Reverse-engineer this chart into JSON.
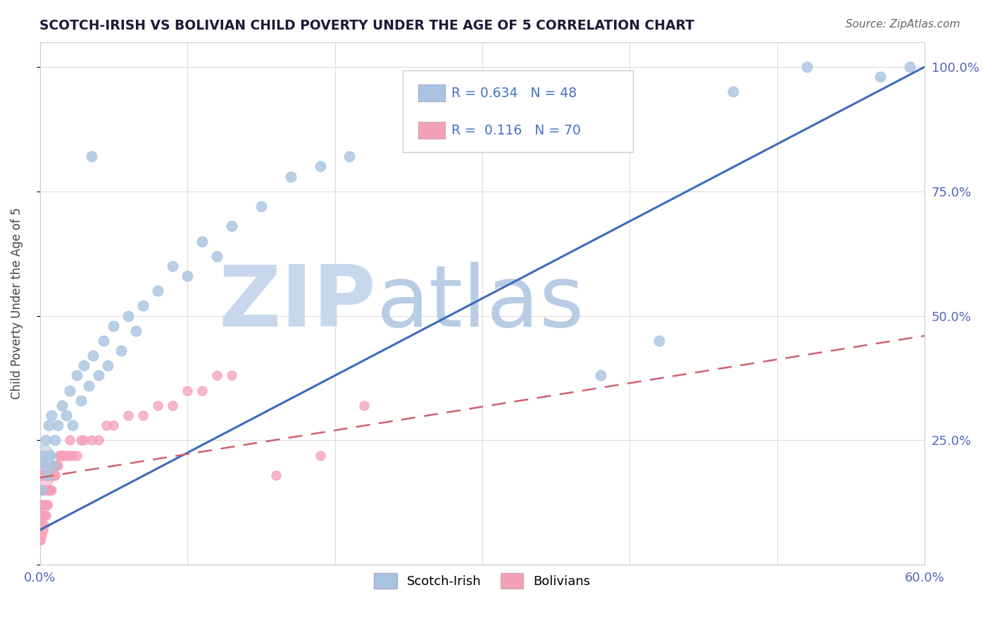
{
  "title": "SCOTCH-IRISH VS BOLIVIAN CHILD POVERTY UNDER THE AGE OF 5 CORRELATION CHART",
  "source": "Source: ZipAtlas.com",
  "ylabel": "Child Poverty Under the Age of 5",
  "xlim": [
    0.0,
    0.6
  ],
  "ylim": [
    0.0,
    1.05
  ],
  "xticks": [
    0.0,
    0.1,
    0.2,
    0.3,
    0.4,
    0.5,
    0.6
  ],
  "xtick_labels": [
    "0.0%",
    "",
    "",
    "",
    "",
    "",
    "60.0%"
  ],
  "ytick_labels": [
    "",
    "25.0%",
    "50.0%",
    "75.0%",
    "100.0%"
  ],
  "yticks": [
    0.0,
    0.25,
    0.5,
    0.75,
    1.0
  ],
  "scotch_irish_R": 0.634,
  "scotch_irish_N": 48,
  "bolivian_R": 0.116,
  "bolivian_N": 70,
  "scotch_irish_color": "#a8c4e0",
  "scotch_irish_line_color": "#3a6bbf",
  "bolivian_color": "#f4a0b8",
  "bolivian_line_color": "#d06070",
  "watermark_zip": "ZIP",
  "watermark_atlas": "atlas",
  "watermark_color_zip": "#c8d8ec",
  "watermark_color_atlas": "#b8cce4",
  "background_color": "#ffffff",
  "si_line_x0": 0.0,
  "si_line_y0": 0.07,
  "si_line_x1": 0.6,
  "si_line_y1": 1.0,
  "bo_line_x0": 0.0,
  "bo_line_y0": 0.175,
  "bo_line_x1": 0.6,
  "bo_line_y1": 0.46,
  "scotch_irish_x": [
    0.002,
    0.003,
    0.004,
    0.005,
    0.006,
    0.007,
    0.008,
    0.009,
    0.01,
    0.012,
    0.015,
    0.018,
    0.02,
    0.022,
    0.025,
    0.028,
    0.03,
    0.033,
    0.036,
    0.04,
    0.043,
    0.046,
    0.05,
    0.055,
    0.06,
    0.065,
    0.07,
    0.08,
    0.09,
    0.1,
    0.11,
    0.12,
    0.13,
    0.15,
    0.17,
    0.19,
    0.21,
    0.25,
    0.28,
    0.32,
    0.38,
    0.42,
    0.47,
    0.52,
    0.57,
    0.59,
    0.001,
    0.035
  ],
  "scotch_irish_y": [
    0.22,
    0.2,
    0.25,
    0.18,
    0.28,
    0.22,
    0.3,
    0.2,
    0.25,
    0.28,
    0.32,
    0.3,
    0.35,
    0.28,
    0.38,
    0.33,
    0.4,
    0.36,
    0.42,
    0.38,
    0.45,
    0.4,
    0.48,
    0.43,
    0.5,
    0.47,
    0.52,
    0.55,
    0.6,
    0.58,
    0.65,
    0.62,
    0.68,
    0.72,
    0.78,
    0.8,
    0.82,
    0.88,
    0.9,
    0.85,
    0.38,
    0.45,
    0.95,
    1.0,
    0.98,
    1.0,
    0.15,
    0.82
  ],
  "bolivian_x": [
    0.0,
    0.0,
    0.0,
    0.0,
    0.0,
    0.001,
    0.001,
    0.001,
    0.001,
    0.001,
    0.002,
    0.002,
    0.002,
    0.002,
    0.003,
    0.003,
    0.003,
    0.003,
    0.004,
    0.004,
    0.004,
    0.005,
    0.005,
    0.005,
    0.006,
    0.006,
    0.007,
    0.007,
    0.008,
    0.008,
    0.009,
    0.01,
    0.01,
    0.011,
    0.012,
    0.013,
    0.014,
    0.015,
    0.016,
    0.018,
    0.02,
    0.022,
    0.025,
    0.028,
    0.03,
    0.035,
    0.04,
    0.045,
    0.05,
    0.06,
    0.07,
    0.08,
    0.09,
    0.1,
    0.11,
    0.12,
    0.13,
    0.0,
    0.001,
    0.002,
    0.003,
    0.004,
    0.005,
    0.007,
    0.01,
    0.015,
    0.02,
    0.16,
    0.19,
    0.22
  ],
  "bolivian_y": [
    0.05,
    0.08,
    0.1,
    0.12,
    0.15,
    0.08,
    0.1,
    0.12,
    0.15,
    0.18,
    0.1,
    0.12,
    0.15,
    0.18,
    0.1,
    0.12,
    0.15,
    0.18,
    0.12,
    0.15,
    0.18,
    0.12,
    0.15,
    0.18,
    0.15,
    0.18,
    0.15,
    0.18,
    0.15,
    0.18,
    0.18,
    0.18,
    0.2,
    0.2,
    0.2,
    0.22,
    0.22,
    0.22,
    0.22,
    0.22,
    0.22,
    0.22,
    0.22,
    0.25,
    0.25,
    0.25,
    0.25,
    0.28,
    0.28,
    0.3,
    0.3,
    0.32,
    0.32,
    0.35,
    0.35,
    0.38,
    0.38,
    0.05,
    0.06,
    0.07,
    0.08,
    0.1,
    0.12,
    0.15,
    0.18,
    0.22,
    0.25,
    0.18,
    0.22,
    0.32
  ],
  "bolivian_large_x": [
    0.0
  ],
  "bolivian_large_y": [
    0.18
  ],
  "bolivian_large_size": 800
}
